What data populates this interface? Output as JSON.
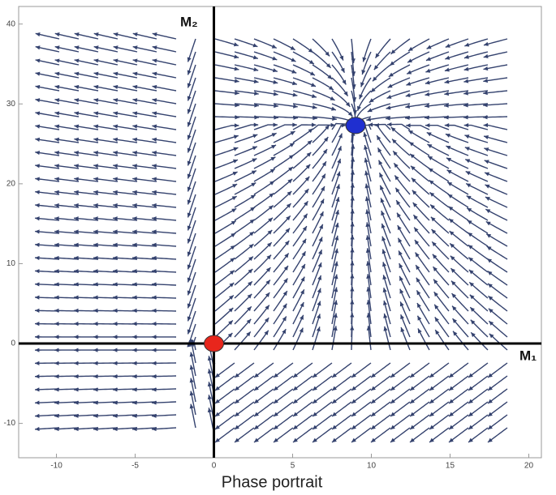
{
  "chart_data": {
    "type": "scatter",
    "caption": "Phase portrait",
    "x_axis_label": "M₁",
    "y_axis_label": "M₂",
    "xlim": [
      -12.4,
      20.8
    ],
    "ylim": [
      -14.3,
      42.2
    ],
    "xticks": [
      -10,
      -5,
      0,
      5,
      10,
      15,
      20
    ],
    "yticks": [
      -10,
      0,
      10,
      20,
      30,
      40
    ],
    "series": [
      {
        "color": "#e8261c",
        "x": [
          0
        ],
        "values": [
          0
        ]
      },
      {
        "color": "#1f2fd0",
        "x": [
          9
        ],
        "values": [
          27.3
        ]
      }
    ]
  }
}
